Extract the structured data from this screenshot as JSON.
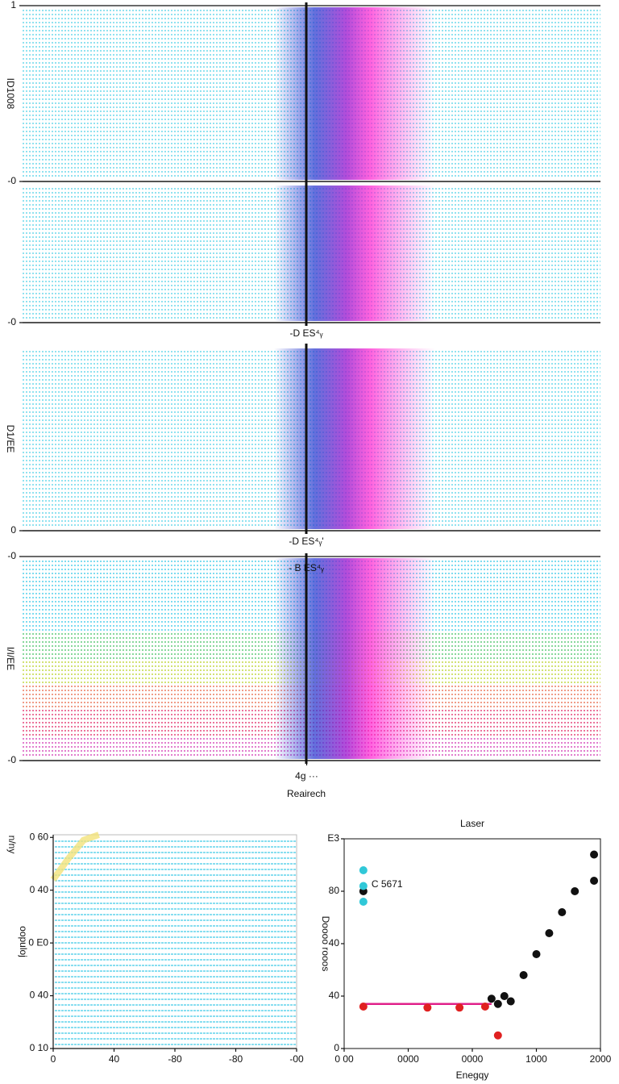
{
  "chart_data": [
    {
      "type": "field",
      "ylabel": "ID1008",
      "ylim": [
        0,
        1
      ],
      "yticks": [
        {
          "value": 0,
          "label": "-0"
        },
        {
          "value": 1,
          "label": "1"
        }
      ]
    },
    {
      "type": "field",
      "subtitle": "-D ES⁴ᵧ",
      "ylim": [
        0,
        1
      ],
      "yticks": [
        {
          "value": 0,
          "label": "-0"
        }
      ]
    },
    {
      "type": "field",
      "ylabel": "D1/EE",
      "subtitle": "-D ES⁴ᵧ'",
      "ylim": [
        0,
        1
      ],
      "yticks": [
        0
      ]
    },
    {
      "type": "field",
      "title": "- B ES⁴ᵧ",
      "ylabel": "I/I/EE",
      "ylim": [
        0,
        1
      ],
      "yticks": [
        {
          "value": 0,
          "label": "-0"
        },
        {
          "value": 1,
          "label": "-0"
        }
      ],
      "xlim": [
        -1,
        1
      ],
      "xticks": [
        {
          "value": 0,
          "label": "4g ···"
        }
      ],
      "xlabel": "Reairech",
      "bands": true
    },
    {
      "type": "line",
      "ylabel": "oopuloj",
      "corner_label": "n/ny",
      "xlim": [
        0,
        160
      ],
      "xticks": [
        0,
        {
          "value": 40,
          "label": "40"
        },
        {
          "value": 80,
          "label": "-80"
        },
        {
          "value": 120,
          "label": "-80"
        },
        {
          "value": 160,
          "label": "-00"
        }
      ],
      "ylim": [
        0,
        4.05
      ],
      "yticks": [
        {
          "value": 0,
          "label": "0 10"
        },
        {
          "value": 1,
          "label": "0 40"
        },
        {
          "value": 2,
          "label": "0 E0"
        },
        {
          "value": 3,
          "label": "0 40"
        },
        {
          "value": 4,
          "label": "0 60"
        }
      ],
      "series": [
        {
          "color": "#f2e27a",
          "x": [
            0,
            10,
            20,
            30
          ],
          "values": [
            3.2,
            3.6,
            3.95,
            4.05
          ]
        }
      ]
    },
    {
      "type": "scatter",
      "title": "Laser",
      "xlabel": "Enegqy",
      "ylabel": "Doooo rooos",
      "annotation": "C 5671",
      "xlim": [
        0,
        2000
      ],
      "xticks": [
        {
          "value": 0,
          "label": "0 00"
        },
        {
          "value": 500,
          "label": "0000"
        },
        {
          "value": 1000,
          "label": "0000"
        },
        {
          "value": 1500,
          "label": "1000"
        },
        {
          "value": 2000,
          "label": "2000"
        }
      ],
      "ylim": [
        0,
        4
      ],
      "yticks": [
        {
          "value": 0,
          "label": "0"
        },
        {
          "value": 1,
          "label": "40"
        },
        {
          "value": 2,
          "label": "40"
        },
        {
          "value": 3,
          "label": "80"
        },
        {
          "value": 4,
          "label": "E3"
        }
      ],
      "lines": [
        {
          "color": "#e0208a",
          "x": [
            150,
            1150
          ],
          "values": [
            0.85,
            0.85
          ]
        }
      ],
      "series": [
        {
          "color": "#111111",
          "x": [
            150,
            1150,
            1200,
            1250,
            1300,
            1400,
            1500,
            1600,
            1700,
            1800,
            1950,
            1950
          ],
          "values": [
            3.0,
            0.95,
            0.85,
            1.0,
            0.9,
            1.4,
            1.8,
            2.2,
            2.6,
            3.0,
            3.2,
            3.7
          ]
        },
        {
          "color": "#e02020",
          "x": [
            150,
            650,
            900,
            1100,
            1200
          ],
          "values": [
            0.8,
            0.78,
            0.78,
            0.8,
            0.25
          ]
        },
        {
          "color": "#30c8d8",
          "x": [
            150,
            150,
            150
          ],
          "values": [
            3.4,
            3.1,
            2.8
          ]
        }
      ]
    }
  ]
}
